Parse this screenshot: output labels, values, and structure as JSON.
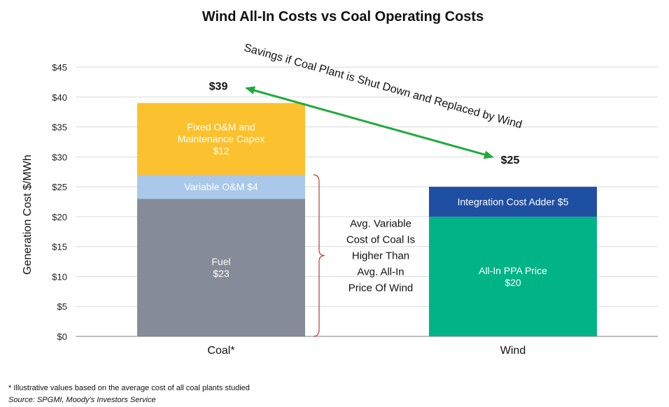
{
  "chart_data": {
    "type": "bar",
    "stacked": true,
    "title": "Wind All-In Costs vs Coal Operating Costs",
    "ylabel": "Generation Cost $/MWh",
    "xlabel": "",
    "ylim": [
      0,
      45
    ],
    "yticks": [
      0,
      5,
      10,
      15,
      20,
      25,
      30,
      35,
      40,
      45
    ],
    "ytick_labels": [
      "$0",
      "$5",
      "$10",
      "$15",
      "$20",
      "$25",
      "$30",
      "$35",
      "$40",
      "$45"
    ],
    "grid": true,
    "categories": [
      "Coal*",
      "Wind"
    ],
    "segments": [
      {
        "category": "Coal*",
        "value": 23,
        "color": "#858b98",
        "label_lines": [
          "Fuel",
          "$23"
        ]
      },
      {
        "category": "Coal*",
        "value": 4,
        "color": "#a9c8ea",
        "label_lines": [
          "Variable O&M $4"
        ]
      },
      {
        "category": "Coal*",
        "value": 12,
        "color": "#fcc12e",
        "label_lines": [
          "Fixed O&M and",
          "Maintenance Capex",
          "$12"
        ]
      },
      {
        "category": "Wind",
        "value": 20,
        "color": "#00b487",
        "label_lines": [
          "All-In PPA Price",
          "$20"
        ]
      },
      {
        "category": "Wind",
        "value": 5,
        "color": "#1f4fa3",
        "label_lines": [
          "Integration Cost Adder $5"
        ]
      }
    ],
    "totals": [
      {
        "category": "Coal*",
        "value": 39,
        "label": "$39"
      },
      {
        "category": "Wind",
        "value": 25,
        "label": "$25"
      }
    ],
    "annotations": {
      "savings_arrow": {
        "text": "Savings if Coal Plant is Shut Down and Replaced by Wind",
        "from_value": 39,
        "to_value": 25,
        "color": "#1faa3c"
      },
      "bracket": {
        "from_value": 0,
        "to_value": 27,
        "color": "#c0392b",
        "text_lines": [
          "Avg. Variable",
          "Cost of Coal Is",
          "Higher Than",
          "Avg. All-In",
          "Price Of Wind"
        ]
      }
    }
  },
  "footnotes": {
    "note": "* Illustrative values based on the average cost of all coal plants studied",
    "source": "Source: SPGMI, Moody's Investors Service"
  }
}
